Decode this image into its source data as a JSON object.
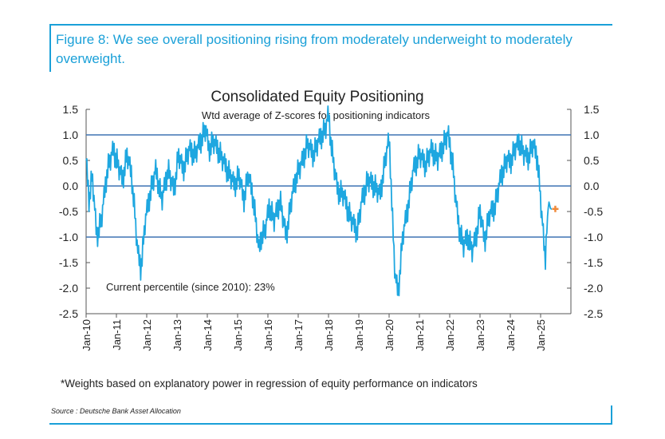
{
  "figure": {
    "title": "Figure 8: We see overall positioning rising from moderately underweight to moderately overweight.",
    "footnote": "*Weights based on explanatory power in regression of equity performance on indicators",
    "source": "Source : Deutsche Bank Asset Allocation"
  },
  "colors": {
    "accent": "#1aa0d8",
    "series": "#1ea7e0",
    "reference_line": "#3f74b4",
    "current_marker": "#f08a3a"
  },
  "chart_data": {
    "type": "line",
    "title": "Consolidated Equity Positioning",
    "subtitle": "Wtd average of Z-scores for positioning indicators",
    "annotation": "Current percentile (since 2010): 23%",
    "ylim": [
      -2.5,
      1.5
    ],
    "yticks": [
      "1.5",
      "1.0",
      "0.5",
      "0.0",
      "-0.5",
      "-1.0",
      "-1.5",
      "-2.0",
      "-2.5"
    ],
    "yticks_right": [
      "1.5",
      "1.0",
      "0.5",
      "0.0",
      "-0.5",
      "-1.0",
      "-1.5",
      "-2.0",
      "-2.5"
    ],
    "xlim": [
      2010.0,
      2026.0
    ],
    "xticks": [
      "Jan-10",
      "Jan-11",
      "Jan-12",
      "Jan-13",
      "Jan-14",
      "Jan-15",
      "Jan-16",
      "Jan-17",
      "Jan-18",
      "Jan-19",
      "Jan-20",
      "Jan-21",
      "Jan-22",
      "Jan-23",
      "Jan-24",
      "Jan-25"
    ],
    "reference_lines": [
      1.0,
      0.0,
      -1.0
    ],
    "grid": false,
    "series": [
      {
        "x": [
          2010.0,
          2010.1,
          2010.2,
          2010.35,
          2010.5,
          2010.7,
          2010.9,
          2011.05,
          2011.2,
          2011.35,
          2011.5,
          2011.6,
          2011.7,
          2011.8,
          2011.85,
          2011.95,
          2012.1,
          2012.3,
          2012.5,
          2012.7,
          2012.9,
          2013.05,
          2013.2,
          2013.4,
          2013.6,
          2013.8,
          2013.95,
          2014.05,
          2014.2,
          2014.35,
          2014.5,
          2014.7,
          2014.9,
          2015.05,
          2015.2,
          2015.35,
          2015.5,
          2015.62,
          2015.7,
          2015.78,
          2015.9,
          2016.05,
          2016.2,
          2016.4,
          2016.6,
          2016.8,
          2016.95,
          2017.1,
          2017.3,
          2017.5,
          2017.7,
          2017.9,
          2018.0,
          2018.08,
          2018.15,
          2018.3,
          2018.5,
          2018.7,
          2018.85,
          2018.95,
          2019.1,
          2019.3,
          2019.5,
          2019.7,
          2019.9,
          2020.0,
          2020.05,
          2020.12,
          2020.2,
          2020.3,
          2020.45,
          2020.6,
          2020.8,
          2021.0,
          2021.2,
          2021.4,
          2021.6,
          2021.8,
          2021.95,
          2022.1,
          2022.2,
          2022.3,
          2022.45,
          2022.6,
          2022.75,
          2022.9,
          2023.0,
          2023.15,
          2023.3,
          2023.5,
          2023.7,
          2023.9,
          2024.0,
          2024.15,
          2024.3,
          2024.45,
          2024.6,
          2024.75,
          2024.9,
          2025.0,
          2025.08,
          2025.15,
          2025.2,
          2025.27,
          2025.33,
          2025.38
        ],
        "values": [
          0.5,
          -0.3,
          0.2,
          -1.0,
          -0.7,
          0.3,
          0.7,
          0.4,
          0.1,
          0.6,
          0.2,
          -0.5,
          -1.3,
          -1.6,
          -1.4,
          -0.7,
          -0.2,
          0.3,
          -0.3,
          0.3,
          -0.1,
          0.6,
          0.3,
          0.7,
          0.6,
          0.9,
          1.1,
          0.7,
          0.85,
          0.7,
          0.5,
          0.25,
          0.0,
          0.2,
          -0.3,
          0.2,
          -0.2,
          -0.8,
          -1.3,
          -1.0,
          -0.9,
          -0.4,
          -0.7,
          -0.3,
          -1.0,
          -0.2,
          0.2,
          0.4,
          0.8,
          0.6,
          0.9,
          1.1,
          1.4,
          0.85,
          0.5,
          -0.1,
          -0.2,
          -0.6,
          -0.8,
          -0.9,
          -0.3,
          0.1,
          0.0,
          -0.2,
          0.6,
          0.9,
          0.3,
          -0.8,
          -1.8,
          -2.1,
          -1.0,
          -0.5,
          0.3,
          0.6,
          0.4,
          0.7,
          0.5,
          0.8,
          1.0,
          0.4,
          -0.3,
          -0.8,
          -1.2,
          -1.0,
          -1.3,
          -0.9,
          -0.5,
          -1.1,
          -0.6,
          -0.4,
          0.2,
          0.5,
          0.45,
          0.7,
          0.85,
          0.6,
          0.55,
          0.8,
          0.5,
          -0.3,
          -0.9,
          -1.5,
          -0.8,
          -0.3,
          -0.45,
          -0.45
        ]
      }
    ],
    "current_point": {
      "x": 2025.38,
      "y": -0.45
    }
  }
}
